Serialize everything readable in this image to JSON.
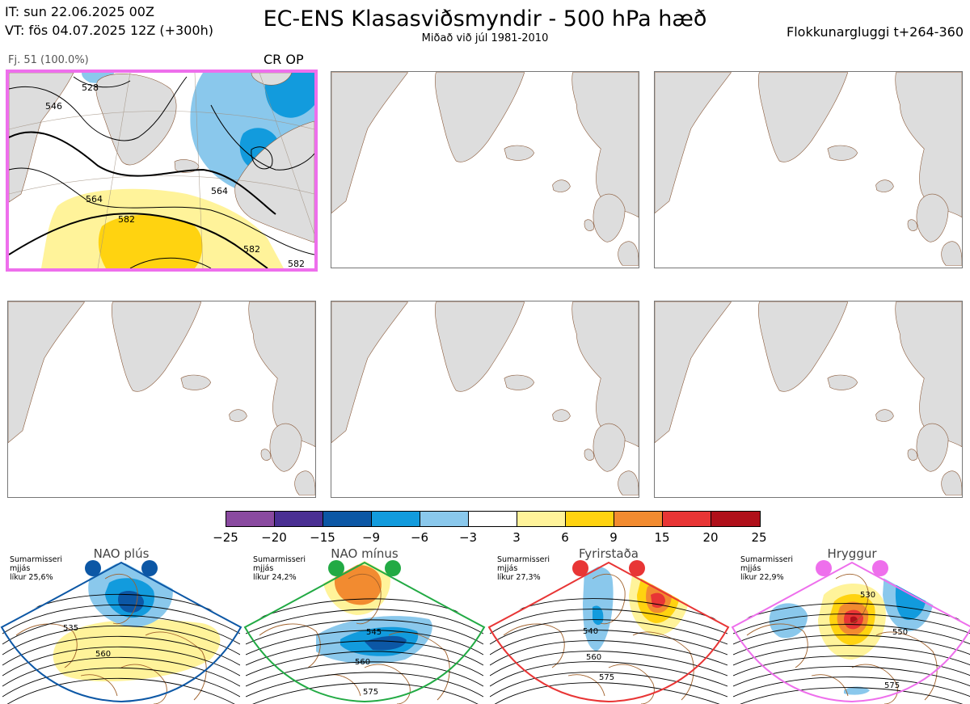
{
  "header": {
    "it_line": "IT: sun 22.06.2025 00Z",
    "vt_line": "VT: fös 04.07.2025 12Z  (+300h)",
    "title": "EC-ENS Klasasviðsmyndir - 500 hPa hæð",
    "subtitle": "Miðað við júl 1981-2010",
    "window": "Flokkunargluggi t+264-360"
  },
  "main_panel": {
    "label": "Fj. 51 (100.0%)",
    "tag": "CR OP",
    "contours": [
      "528",
      "546",
      "564",
      "564",
      "582",
      "582",
      "582"
    ]
  },
  "colorbar": {
    "colors": [
      "#8a4aa0",
      "#4a2f93",
      "#0c57a5",
      "#129bdd",
      "#8ac8ec",
      "#ffffff",
      "#fff39a",
      "#ffd310",
      "#f28b30",
      "#e83535",
      "#b0101a"
    ],
    "ticks": [
      "−25",
      "−20",
      "−15",
      "−9",
      "−6",
      "−3",
      "3",
      "6",
      "9",
      "15",
      "20",
      "25"
    ]
  },
  "regimes": [
    {
      "name": "NAO plús",
      "season": "Sumarmisseri",
      "avg": "mjjás",
      "prob": "líkur 25,6%",
      "color": "#0c57a5",
      "contours": [
        "535",
        "560"
      ]
    },
    {
      "name": "NAO mínus",
      "season": "Sumarmisseri",
      "avg": "mjjás",
      "prob": "líkur 24,2%",
      "color": "#22aa44",
      "contours": [
        "545",
        "560",
        "575"
      ]
    },
    {
      "name": "Fyrirstaða",
      "season": "Sumarmisseri",
      "avg": "mjjás",
      "prob": "líkur 27,3%",
      "color": "#e83535",
      "contours": [
        "540",
        "560",
        "575"
      ]
    },
    {
      "name": "Hryggur",
      "season": "Sumarmisseri",
      "avg": "mjjás",
      "prob": "líkur 22,9%",
      "color": "#ee6fec",
      "contours": [
        "530",
        "550",
        "575"
      ]
    }
  ]
}
